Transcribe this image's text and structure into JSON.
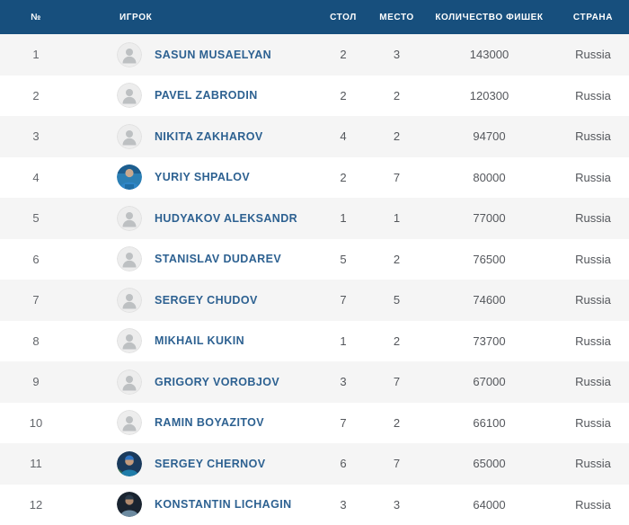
{
  "table": {
    "columns": [
      {
        "key": "num",
        "label": "№"
      },
      {
        "key": "player",
        "label": "ИГРОК"
      },
      {
        "key": "table",
        "label": "СТОЛ"
      },
      {
        "key": "place",
        "label": "МЕСТО"
      },
      {
        "key": "chips",
        "label": "КОЛИЧЕСТВО ФИШЕК"
      },
      {
        "key": "country",
        "label": "СТРАНА"
      }
    ],
    "rows": [
      {
        "num": "1",
        "name": "SASUN MUSAELYAN",
        "avatar": "placeholder",
        "table": "2",
        "place": "3",
        "chips": "143000",
        "country": "Russia"
      },
      {
        "num": "2",
        "name": "PAVEL ZABRODIN",
        "avatar": "placeholder",
        "table": "2",
        "place": "2",
        "chips": "120300",
        "country": "Russia"
      },
      {
        "num": "3",
        "name": "NIKITA ZAKHAROV",
        "avatar": "placeholder",
        "table": "4",
        "place": "2",
        "chips": "94700",
        "country": "Russia"
      },
      {
        "num": "4",
        "name": "YURIY SHPALOV",
        "avatar": "photo-1",
        "table": "2",
        "place": "7",
        "chips": "80000",
        "country": "Russia"
      },
      {
        "num": "5",
        "name": "HUDYAKOV ALEKSANDR",
        "avatar": "placeholder",
        "table": "1",
        "place": "1",
        "chips": "77000",
        "country": "Russia"
      },
      {
        "num": "6",
        "name": "STANISLAV DUDAREV",
        "avatar": "placeholder",
        "table": "5",
        "place": "2",
        "chips": "76500",
        "country": "Russia"
      },
      {
        "num": "7",
        "name": "SERGEY CHUDOV",
        "avatar": "placeholder",
        "table": "7",
        "place": "5",
        "chips": "74600",
        "country": "Russia"
      },
      {
        "num": "8",
        "name": "MIKHAIL KUKIN",
        "avatar": "placeholder",
        "table": "1",
        "place": "2",
        "chips": "73700",
        "country": "Russia"
      },
      {
        "num": "9",
        "name": "GRIGORY VOROBJOV",
        "avatar": "placeholder",
        "table": "3",
        "place": "7",
        "chips": "67000",
        "country": "Russia"
      },
      {
        "num": "10",
        "name": "RAMIN BOYAZITOV",
        "avatar": "placeholder",
        "table": "7",
        "place": "2",
        "chips": "66100",
        "country": "Russia"
      },
      {
        "num": "11",
        "name": "SERGEY CHERNOV",
        "avatar": "photo-2",
        "table": "6",
        "place": "7",
        "chips": "65000",
        "country": "Russia"
      },
      {
        "num": "12",
        "name": "KONSTANTIN LICHAGIN",
        "avatar": "photo-3",
        "table": "3",
        "place": "3",
        "chips": "64000",
        "country": "Russia"
      }
    ]
  },
  "colors": {
    "header_bg": "#174F7D",
    "row_alt_bg": "#f5f5f5",
    "player_link": "#2d6191",
    "cell_text": "#54575c",
    "num_text": "#63666b"
  }
}
